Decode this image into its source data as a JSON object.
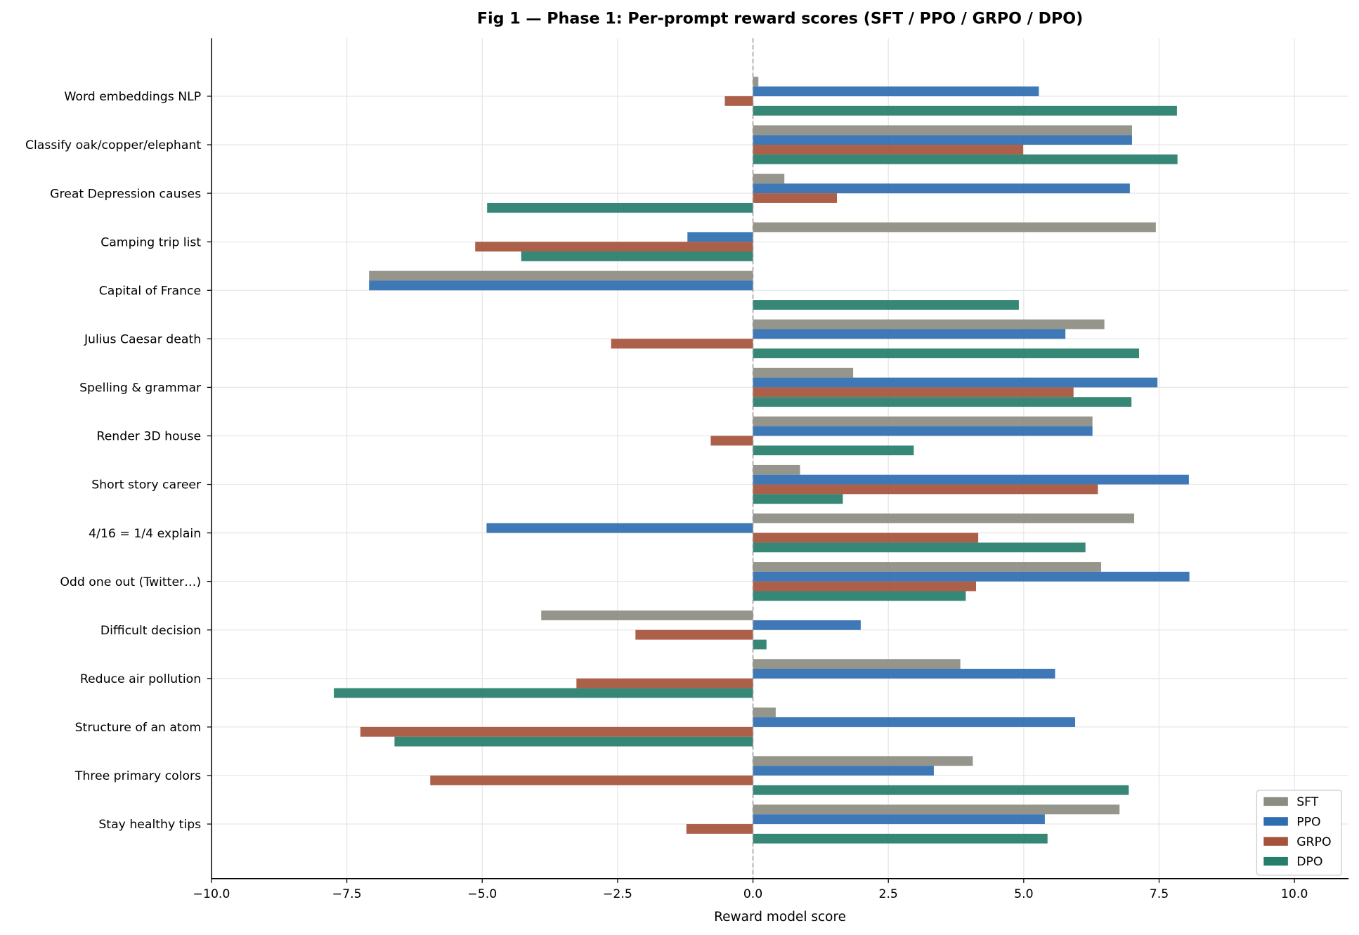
{
  "chart_data": {
    "type": "bar",
    "orientation": "horizontal",
    "title": "Fig 1 — Phase 1: Per-prompt reward scores (SFT / PPO / GRPO / DPO)",
    "xlabel": "Reward model score",
    "ylabel": "",
    "xlim": [
      -10,
      11
    ],
    "xticks": [
      -10,
      -7.5,
      -5,
      -2.5,
      0,
      2.5,
      5,
      7.5,
      10
    ],
    "xtick_labels": [
      "−10.0",
      "−7.5",
      "−5.0",
      "−2.5",
      "0.0",
      "2.5",
      "5.0",
      "7.5",
      "10.0"
    ],
    "grid": true,
    "zero_line": "dashed",
    "legend_placement": "lower-right",
    "categories": [
      "Word embeddings NLP",
      "Classify oak/copper/elephant",
      "Great Depression causes",
      "Camping trip list",
      "Capital of France",
      "Julius Caesar death",
      "Spelling & grammar",
      "Render 3D house",
      "Short story career",
      "4/16 = 1/4 explain",
      "Odd one out (Twitter…)",
      "Difficult decision",
      "Reduce air pollution",
      "Structure of an atom",
      "Three primary colors",
      "Stay healthy tips"
    ],
    "series": [
      {
        "name": "SFT",
        "color": "#8c8c82",
        "values": [
          0.1,
          7.0,
          0.58,
          7.44,
          -7.09,
          6.49,
          1.85,
          6.27,
          0.87,
          7.04,
          6.43,
          -3.91,
          3.83,
          0.42,
          4.06,
          6.77
        ]
      },
      {
        "name": "PPO",
        "color": "#2e6db0",
        "values": [
          5.28,
          7.0,
          6.96,
          -1.21,
          -7.09,
          5.77,
          7.47,
          6.27,
          8.05,
          -4.92,
          8.06,
          1.99,
          5.58,
          5.95,
          3.34,
          5.39
        ]
      },
      {
        "name": "GRPO",
        "color": "#a5523a",
        "values": [
          -0.52,
          4.99,
          1.55,
          -5.13,
          0.0,
          -2.62,
          5.92,
          -0.78,
          6.37,
          4.16,
          4.12,
          -2.17,
          -3.26,
          -7.25,
          -5.96,
          -1.23
        ]
      },
      {
        "name": "DPO",
        "color": "#267d6a",
        "values": [
          7.83,
          7.84,
          -4.91,
          -4.28,
          4.91,
          7.13,
          6.99,
          2.97,
          1.66,
          6.14,
          3.93,
          0.25,
          -7.74,
          -6.62,
          6.94,
          5.44
        ]
      }
    ]
  }
}
